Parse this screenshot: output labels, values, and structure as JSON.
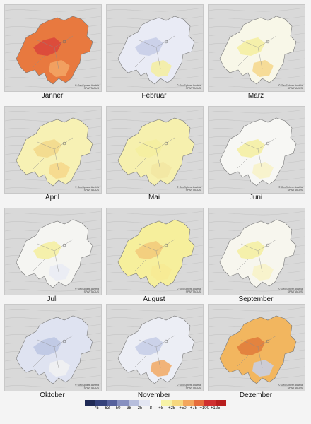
{
  "credit": {
    "line1": "© GeoSphere Austria",
    "line2": "SPARTACUS"
  },
  "months": [
    {
      "label": "Jänner",
      "fill": "#e8793f",
      "core": "#d9443b",
      "accent": "#f3a766"
    },
    {
      "label": "Februar",
      "fill": "#e9ebf5",
      "core": "#c6cde6",
      "accent": "#f5ef9f"
    },
    {
      "label": "März",
      "fill": "#f8f7e8",
      "core": "#f5ef9f",
      "accent": "#f6d78a"
    },
    {
      "label": "April",
      "fill": "#f7f1b4",
      "core": "#f2d889",
      "accent": "#f6d78a"
    },
    {
      "label": "Mai",
      "fill": "#f6f0ae",
      "core": "#f5ef9f",
      "accent": "#f2e6a2"
    },
    {
      "label": "Juni",
      "fill": "#f7f7f4",
      "core": "#f5ef9f",
      "accent": "#f8f2c5"
    },
    {
      "label": "Juli",
      "fill": "#f5f5f2",
      "core": "#f5ef9f",
      "accent": "#e9ebf5"
    },
    {
      "label": "August",
      "fill": "#f6ef9c",
      "core": "#f2c97a",
      "accent": "#f7ea94"
    },
    {
      "label": "September",
      "fill": "#f7f6ee",
      "core": "#f5ef9f",
      "accent": "#f8f2c5"
    },
    {
      "label": "Oktober",
      "fill": "#dfe3f1",
      "core": "#bcc5e3",
      "accent": "#f2f2f2"
    },
    {
      "label": "November",
      "fill": "#eceef5",
      "core": "#c6cde6",
      "accent": "#f2a863"
    },
    {
      "label": "Dezember",
      "fill": "#f2b65f",
      "core": "#e07a3a",
      "accent": "#c7d0ea"
    }
  ],
  "legend": {
    "labels": [
      "-75",
      "-63",
      "-50",
      "-38",
      "-25",
      "-8",
      "+8",
      "+25",
      "+50",
      "+75",
      "+100",
      "+125"
    ],
    "colors": [
      "#1f2a55",
      "#34417a",
      "#56619c",
      "#8790c0",
      "#b7bedc",
      "#e3e6f2",
      "#f7f7f7",
      "#f6f2a7",
      "#f6d77e",
      "#f3a65d",
      "#e66d3c",
      "#cf2f2f",
      "#b81e1e"
    ]
  }
}
